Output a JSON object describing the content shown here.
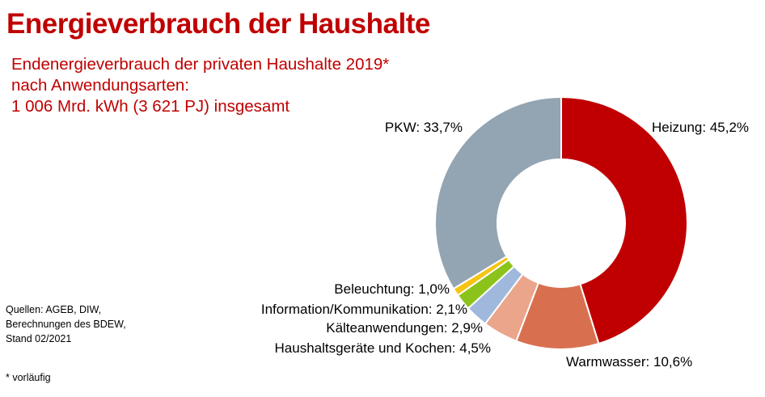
{
  "title": "Energieverbrauch der Haushalte",
  "subtitle_lines": [
    "Endenergieverbrauch der privaten Haushalte 2019*",
    "nach Anwendungsarten:",
    "1 006 Mrd. kWh (3 621 PJ) insgesamt"
  ],
  "sources_lines": [
    "Quellen: AGEB, DIW,",
    "Berechnungen des BDEW,",
    "Stand 02/2021"
  ],
  "footnote": "* vorläufig",
  "chart_data": {
    "type": "pie",
    "variant": "donut",
    "title": "Endenergieverbrauch der privaten Haushalte 2019* nach Anwendungsarten",
    "unit": "%",
    "slices": [
      {
        "key": "heizung",
        "name": "Heizung",
        "value": 45.2,
        "label": "Heizung: 45,2%",
        "color": "#c00000"
      },
      {
        "key": "warmwasser",
        "name": "Warmwasser",
        "value": 10.6,
        "label": "Warmwasser: 10,6%",
        "color": "#d8704f"
      },
      {
        "key": "haushaltsgeraete",
        "name": "Haushaltsgeräte und Kochen",
        "value": 4.5,
        "label": "Haushaltsgeräte und Kochen: 4,5%",
        "color": "#eaa58a"
      },
      {
        "key": "kaelte",
        "name": "Kälteanwendungen",
        "value": 2.9,
        "label": "Kälteanwendungen: 2,9%",
        "color": "#9fb8dc"
      },
      {
        "key": "ikt",
        "name": "Information/Kommunikation",
        "value": 2.1,
        "label": "Information/Kommunikation: 2,1%",
        "color": "#8cc31b"
      },
      {
        "key": "beleuchtung",
        "name": "Beleuchtung",
        "value": 1.0,
        "label": "Beleuchtung: 1,0%",
        "color": "#f6c412"
      },
      {
        "key": "pkw",
        "name": "PKW",
        "value": 33.7,
        "label": "PKW: 33,7%",
        "color": "#93a4b2"
      }
    ]
  }
}
